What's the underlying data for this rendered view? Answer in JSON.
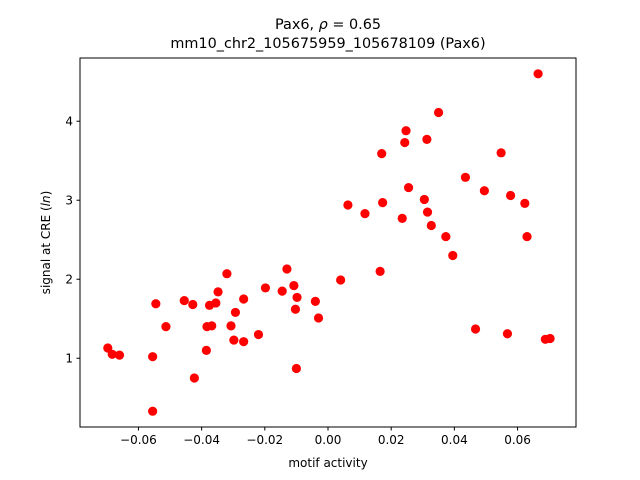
{
  "chart_data": {
    "type": "scatter",
    "title": "Pax6, ρ = 0.65",
    "title_parts": {
      "prefix": "Pax6, ",
      "symbol": "ρ",
      "suffix": " = 0.65"
    },
    "subtitle": "mm10_chr2_105675959_105678109 (Pax6)",
    "xlabel": "motif activity",
    "ylabel": "signal at CRE (ln)",
    "ylabel_parts": {
      "prefix": "signal at CRE (",
      "italic": "ln",
      "suffix": ")"
    },
    "xlim": [
      -0.0785,
      0.0785
    ],
    "ylim": [
      0.13,
      4.8
    ],
    "x_ticks": [
      -0.06,
      -0.04,
      -0.02,
      0.0,
      0.02,
      0.04,
      0.06
    ],
    "x_tick_labels": [
      "−0.06",
      "−0.04",
      "−0.02",
      "0.00",
      "0.02",
      "0.04",
      "0.06"
    ],
    "y_ticks": [
      1,
      2,
      3,
      4
    ],
    "y_tick_labels": [
      "1",
      "2",
      "3",
      "4"
    ],
    "grid": false,
    "legend": "none",
    "marker_color": "#ff0000",
    "points": [
      {
        "x": -0.0697,
        "y": 1.13
      },
      {
        "x": -0.0683,
        "y": 1.05
      },
      {
        "x": -0.066,
        "y": 1.04
      },
      {
        "x": -0.0555,
        "y": 1.02
      },
      {
        "x": -0.0555,
        "y": 0.33
      },
      {
        "x": -0.0545,
        "y": 1.69
      },
      {
        "x": -0.0513,
        "y": 1.4
      },
      {
        "x": -0.0455,
        "y": 1.73
      },
      {
        "x": -0.0428,
        "y": 1.68
      },
      {
        "x": -0.0423,
        "y": 0.75
      },
      {
        "x": -0.0385,
        "y": 1.1
      },
      {
        "x": -0.0383,
        "y": 1.4
      },
      {
        "x": -0.0375,
        "y": 1.67
      },
      {
        "x": -0.0368,
        "y": 1.41
      },
      {
        "x": -0.0355,
        "y": 1.7
      },
      {
        "x": -0.0348,
        "y": 1.84
      },
      {
        "x": -0.032,
        "y": 2.07
      },
      {
        "x": -0.0307,
        "y": 1.41
      },
      {
        "x": -0.0298,
        "y": 1.23
      },
      {
        "x": -0.0293,
        "y": 1.58
      },
      {
        "x": -0.0267,
        "y": 1.75
      },
      {
        "x": -0.0267,
        "y": 1.21
      },
      {
        "x": -0.022,
        "y": 1.3
      },
      {
        "x": -0.0198,
        "y": 1.89
      },
      {
        "x": -0.0145,
        "y": 1.85
      },
      {
        "x": -0.013,
        "y": 2.13
      },
      {
        "x": -0.0108,
        "y": 1.92
      },
      {
        "x": -0.0103,
        "y": 1.62
      },
      {
        "x": -0.01,
        "y": 0.87
      },
      {
        "x": -0.0098,
        "y": 1.77
      },
      {
        "x": -0.004,
        "y": 1.72
      },
      {
        "x": -0.003,
        "y": 1.51
      },
      {
        "x": 0.004,
        "y": 1.99
      },
      {
        "x": 0.0063,
        "y": 2.94
      },
      {
        "x": 0.0117,
        "y": 2.83
      },
      {
        "x": 0.0165,
        "y": 2.1
      },
      {
        "x": 0.017,
        "y": 3.59
      },
      {
        "x": 0.0173,
        "y": 2.97
      },
      {
        "x": 0.0235,
        "y": 2.77
      },
      {
        "x": 0.0243,
        "y": 3.73
      },
      {
        "x": 0.0247,
        "y": 3.88
      },
      {
        "x": 0.0255,
        "y": 3.16
      },
      {
        "x": 0.0305,
        "y": 3.01
      },
      {
        "x": 0.0313,
        "y": 3.77
      },
      {
        "x": 0.0315,
        "y": 2.85
      },
      {
        "x": 0.0327,
        "y": 2.68
      },
      {
        "x": 0.035,
        "y": 4.11
      },
      {
        "x": 0.0373,
        "y": 2.54
      },
      {
        "x": 0.0395,
        "y": 2.3
      },
      {
        "x": 0.0435,
        "y": 3.29
      },
      {
        "x": 0.0467,
        "y": 1.37
      },
      {
        "x": 0.0495,
        "y": 3.12
      },
      {
        "x": 0.0548,
        "y": 3.6
      },
      {
        "x": 0.0568,
        "y": 1.31
      },
      {
        "x": 0.0578,
        "y": 3.06
      },
      {
        "x": 0.0623,
        "y": 2.96
      },
      {
        "x": 0.063,
        "y": 2.54
      },
      {
        "x": 0.0665,
        "y": 4.6
      },
      {
        "x": 0.0688,
        "y": 1.24
      },
      {
        "x": 0.0703,
        "y": 1.25
      }
    ]
  }
}
